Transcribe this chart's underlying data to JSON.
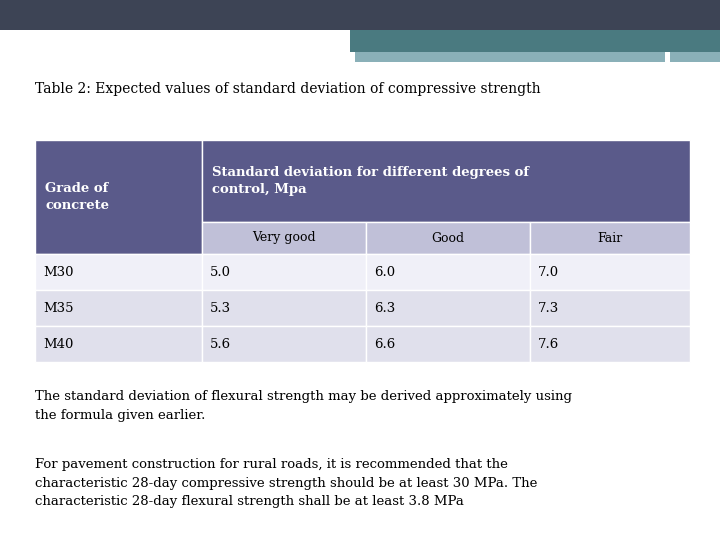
{
  "title": "Table 2: Expected values of standard deviation of compressive strength",
  "header_bg": "#5a5a8a",
  "subheader_bg": "#c0c0d8",
  "row_bg_even": "#f0f0f8",
  "row_bg_odd": "#e0e0ec",
  "header_text_color": "#ffffff",
  "subheader_text_color": "#000000",
  "body_text_color": "#000000",
  "title_text_color": "#000000",
  "sub_headers": [
    "Very good",
    "Good",
    "Fair"
  ],
  "rows": [
    [
      "M30",
      "5.0",
      "6.0",
      "7.0"
    ],
    [
      "M35",
      "5.3",
      "6.3",
      "7.3"
    ],
    [
      "M40",
      "5.6",
      "6.6",
      "7.6"
    ]
  ],
  "footer_texts": [
    "The standard deviation of flexural strength may be derived approximately using\nthe formula given earlier.",
    "For pavement construction for rural roads, it is recommended that the\ncharacteristic 28-day compressive strength should be at least 30 MPa. The\ncharacteristic 28-day flexural strength shall be at least 3.8 MPa"
  ],
  "top_bar1_color": "#3d4455",
  "top_bar2_color": "#4a7a80",
  "top_bar3_color": "#8ab0b8",
  "background_color": "#ffffff",
  "figsize": [
    7.2,
    5.4
  ],
  "dpi": 100
}
